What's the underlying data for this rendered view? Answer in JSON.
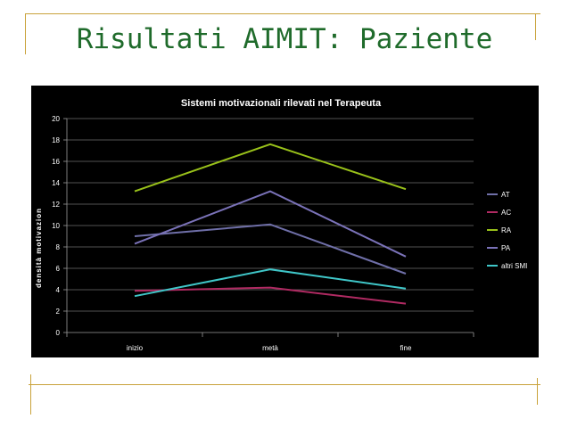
{
  "slide": {
    "title": "Risultati AIMIT: Paziente"
  },
  "chart_data": {
    "type": "line",
    "title": "Sistemi motivazionali rilevati nel Terapeuta",
    "xlabel": "",
    "ylabel": "densità motivazion",
    "categories": [
      "inizio",
      "metà",
      "fine"
    ],
    "ylim": [
      0,
      20
    ],
    "yticks": [
      0,
      2,
      4,
      6,
      8,
      10,
      12,
      14,
      16,
      18,
      20
    ],
    "grid": true,
    "legend_position": "right",
    "series": [
      {
        "name": "AT",
        "color": "#6f6fa8",
        "values": [
          9.0,
          10.1,
          5.5
        ]
      },
      {
        "name": "AC",
        "color": "#b02a62",
        "values": [
          3.9,
          4.2,
          2.7
        ]
      },
      {
        "name": "RA",
        "color": "#99c11a",
        "values": [
          13.2,
          17.6,
          13.4
        ]
      },
      {
        "name": "PA",
        "color": "#7a72b8",
        "values": [
          8.3,
          13.2,
          7.1
        ]
      },
      {
        "name": "altri SMI",
        "color": "#3fc6c8",
        "values": [
          3.4,
          5.9,
          4.1
        ]
      }
    ]
  }
}
